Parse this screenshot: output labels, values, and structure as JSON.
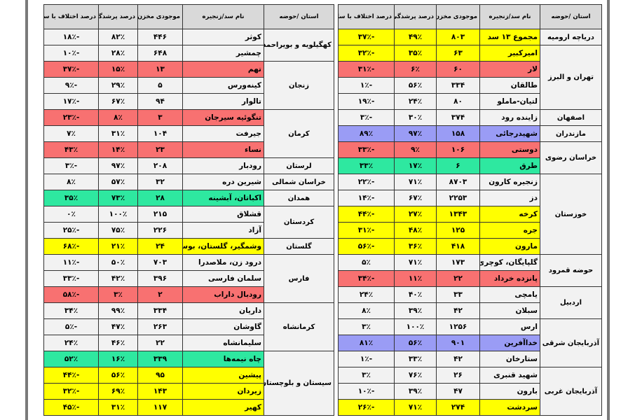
{
  "headers": {
    "province": "استان /حوضه",
    "dam": "نام سد/زنجیره",
    "volume": "موجودی مخزن",
    "fill": "درصد پرشدگی",
    "change": "درصد اختلاف با سال قبل"
  },
  "colors": {
    "gray": "#f2f2f2",
    "red": "#f87171",
    "yellow": "#ffff00",
    "green": "#2ee8a0",
    "blue": "#9a9cf5",
    "header": "#d9d9d9"
  },
  "right_table": {
    "provinces": [
      "دریاچه ارومیه",
      "تهران و البرز",
      "اصفهان",
      "مازندران",
      "خراسان رضوی",
      "خوزستان",
      "حوضه قمرود",
      "اردبیل",
      "آذربایجان شرقی",
      "آذربایجان غربی"
    ],
    "rows": [
      {
        "dam": "مجموع ۱۳ سد",
        "volume": "۸۰۳",
        "fill": "۴۹٪",
        "change": "-۳۷٪",
        "color": "yellow"
      },
      {
        "dam": "امیرکبیر",
        "volume": "۶۳",
        "fill": "۳۵٪",
        "change": "-۳۲٪",
        "color": "yellow"
      },
      {
        "dam": "لار",
        "volume": "۶۰",
        "fill": "۶٪",
        "change": "-۳۱٪",
        "color": "red"
      },
      {
        "dam": "طالقان",
        "volume": "۳۳۴",
        "fill": "۵۶٪",
        "change": "-۱٪",
        "color": "gray"
      },
      {
        "dam": "لتیان-ماملو",
        "volume": "۸۰",
        "fill": "۲۴٪",
        "change": "-۱۹٪",
        "color": "gray"
      },
      {
        "dam": "زاینده رود",
        "volume": "۳۷۴",
        "fill": "۳۰٪",
        "change": "-۳٪",
        "color": "gray"
      },
      {
        "dam": "شهیدرجائی",
        "volume": "۱۵۸",
        "fill": "۹۷٪",
        "change": "۸۹٪",
        "color": "blue"
      },
      {
        "dam": "دوستی",
        "volume": "۱۰۶",
        "fill": "۹٪",
        "change": "-۳۳٪",
        "color": "red"
      },
      {
        "dam": "طرق",
        "volume": "۶",
        "fill": "۱۷٪",
        "change": "۳۳٪",
        "color": "green"
      },
      {
        "dam": "زنجیره کارون",
        "volume": "۸۷۰۳",
        "fill": "۷۱٪",
        "change": "-۲۲٪",
        "color": "gray"
      },
      {
        "dam": "دز",
        "volume": "۲۲۵۳",
        "fill": "۶۷٪",
        "change": "-۱۴٪",
        "color": "gray"
      },
      {
        "dam": "کرخه",
        "volume": "۱۳۴۳",
        "fill": "۲۷٪",
        "change": "-۴۴٪",
        "color": "yellow"
      },
      {
        "dam": "جره",
        "volume": "۱۲۵",
        "fill": "۴۸٪",
        "change": "-۳۱٪",
        "color": "yellow"
      },
      {
        "dam": "مارون",
        "volume": "۴۱۸",
        "fill": "۳۶٪",
        "change": "-۵۶٪",
        "color": "yellow"
      },
      {
        "dam": "گلپایگان، کوچری",
        "volume": "۱۷۳",
        "fill": "۷۱٪",
        "change": "۵٪",
        "color": "gray"
      },
      {
        "dam": "پانزده خرداد",
        "volume": "۲۲",
        "fill": "۱۱٪",
        "change": "-۳۴٪",
        "color": "red"
      },
      {
        "dam": "یامچی",
        "volume": "۳۳",
        "fill": "۴۰٪",
        "change": "۲۴٪",
        "color": "gray"
      },
      {
        "dam": "سبلان",
        "volume": "۴۲",
        "fill": "۳۹٪",
        "change": "۸٪",
        "color": "gray"
      },
      {
        "dam": "ارس",
        "volume": "۱۲۵۶",
        "fill": "۱۰۰٪",
        "change": "۳٪",
        "color": "gray"
      },
      {
        "dam": "خداآفرین",
        "volume": "۹۰۱",
        "fill": "۵۶٪",
        "change": "۸۱٪",
        "color": "blue"
      },
      {
        "dam": "ستارخان",
        "volume": "۴۲",
        "fill": "۳۳٪",
        "change": "-۱٪",
        "color": "gray"
      },
      {
        "dam": "شهید قنبری",
        "volume": "۲۶",
        "fill": "۷۶٪",
        "change": "۳٪",
        "color": "gray"
      },
      {
        "dam": "بارون",
        "volume": "۴۷",
        "fill": "۳۹٪",
        "change": "-۱۰٪",
        "color": "gray"
      },
      {
        "dam": "سردشت",
        "volume": "۲۷۴",
        "fill": "۷۱٪",
        "change": "-۲۶٪",
        "color": "yellow"
      }
    ]
  },
  "left_table": {
    "provinces": [
      "کهگیلویه و بویراحمد",
      "زنجان",
      "کرمان",
      "لرستان",
      "خراسان شمالی",
      "همدان",
      "کردستان",
      "گلستان",
      "فارس",
      "کرمانشاه",
      "سیستان و بلوچستان"
    ],
    "rows": [
      {
        "dam": "کوثر",
        "volume": "۴۴۶",
        "fill": "۸۲٪",
        "change": "-۱۸٪",
        "color": "gray"
      },
      {
        "dam": "چمشیر",
        "volume": "۶۴۸",
        "fill": "۲۸٪",
        "change": "-۱۰٪",
        "color": "gray"
      },
      {
        "dam": "تهم",
        "volume": "۱۳",
        "fill": "۱۵٪",
        "change": "-۳۷٪",
        "color": "red"
      },
      {
        "dam": "کینه‌ورس",
        "volume": "۵",
        "fill": "۲۹٪",
        "change": "-۹٪",
        "color": "gray"
      },
      {
        "dam": "تالوار",
        "volume": "۹۴",
        "fill": "۶۷٪",
        "change": "-۱۷٪",
        "color": "gray"
      },
      {
        "dam": "تنگوئیه سیرجان",
        "volume": "۳",
        "fill": "۸٪",
        "change": "-۲۳٪",
        "color": "red"
      },
      {
        "dam": "جیرفت",
        "volume": "۱۰۴",
        "fill": "۳۱٪",
        "change": "۷٪",
        "color": "gray"
      },
      {
        "dam": "نساء",
        "volume": "۲۳",
        "fill": "۱۴٪",
        "change": "۴۳٪",
        "color": "red"
      },
      {
        "dam": "رودبار",
        "volume": "۲۰۸",
        "fill": "۹۷٪",
        "change": "-۳٪",
        "color": "gray"
      },
      {
        "dam": "شیرین دره",
        "volume": "۳۲",
        "fill": "۵۷٪",
        "change": "۸٪",
        "color": "gray"
      },
      {
        "dam": "اکباتان، آبشینه",
        "volume": "۲۸",
        "fill": "۷۳٪",
        "change": "۳۵٪",
        "color": "green"
      },
      {
        "dam": "قشلاق",
        "volume": "۲۱۵",
        "fill": "۱۰۰٪",
        "change": "۰٪",
        "color": "gray"
      },
      {
        "dam": "آزاد",
        "volume": "۲۲۶",
        "fill": "۷۵٪",
        "change": "-۲۵٪",
        "color": "gray"
      },
      {
        "dam": "وشمگیر، گلستان، بوستان",
        "volume": "۲۴",
        "fill": "۲۱٪",
        "change": "-۶۸٪",
        "color": "yellow"
      },
      {
        "dam": "درود زن، ملاصدرا",
        "volume": "۷۰۳",
        "fill": "۵۰٪",
        "change": "-۱۱٪",
        "color": "gray"
      },
      {
        "dam": "سلمان فارسی",
        "volume": "۳۹۶",
        "fill": "۴۲٪",
        "change": "-۳۳٪",
        "color": "gray"
      },
      {
        "dam": "رودبال داراب",
        "volume": "۲",
        "fill": "۳٪",
        "change": "-۵۸٪",
        "color": "red"
      },
      {
        "dam": "داریان",
        "volume": "۳۳۴",
        "fill": "۹۹٪",
        "change": "۳۴٪",
        "color": "gray"
      },
      {
        "dam": "گاوشان",
        "volume": "۲۶۳",
        "fill": "۴۷٪",
        "change": "-۵٪",
        "color": "gray"
      },
      {
        "dam": "سلیمانشاه",
        "volume": "۲۲",
        "fill": "۴۶٪",
        "change": "۲۴٪",
        "color": "gray"
      },
      {
        "dam": "چاه نیمه‌ها",
        "volume": "۳۳۹",
        "fill": "۱۶٪",
        "change": "۵۲٪",
        "color": "green"
      },
      {
        "dam": "پیشین",
        "volume": "۹۵",
        "fill": "۵۶٪",
        "change": "-۴۴٪",
        "color": "yellow"
      },
      {
        "dam": "زیردان",
        "volume": "۱۴۳",
        "fill": "۶۹٪",
        "change": "-۳۲٪",
        "color": "yellow"
      },
      {
        "dam": "کهیر",
        "volume": "۱۱۷",
        "fill": "۳۱٪",
        "change": "-۴۵٪",
        "color": "yellow"
      }
    ]
  }
}
